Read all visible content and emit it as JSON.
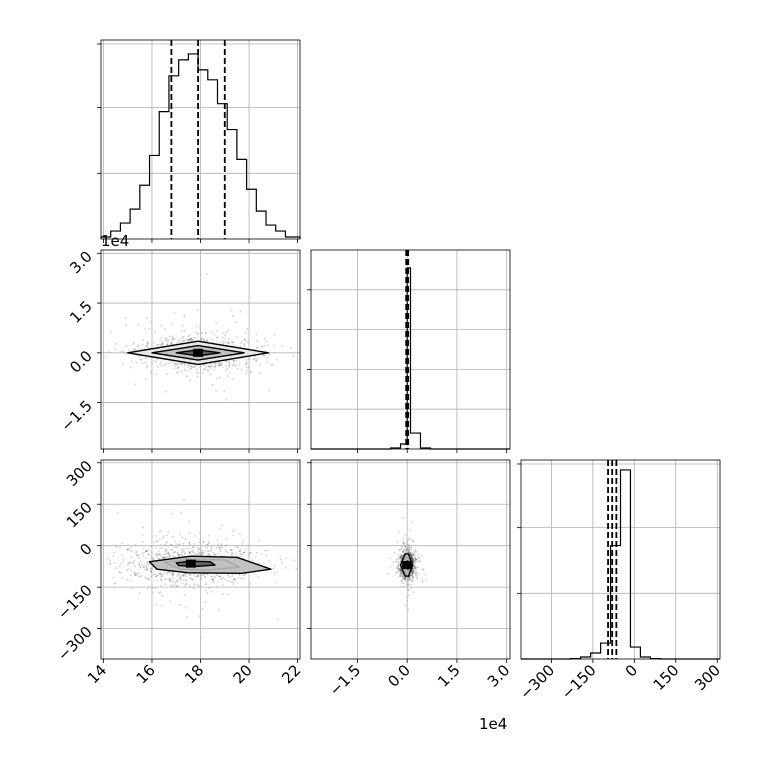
{
  "chart_data": {
    "type": "corner",
    "parameters": [
      {
        "range": [
          13.9,
          22.1
        ],
        "ticks": [
          14,
          16,
          18,
          20,
          22
        ],
        "tick_labels": [
          "14",
          "16",
          "18",
          "20",
          "22"
        ],
        "quantiles": [
          16.8,
          17.9,
          19.0
        ],
        "hist_y_ticks": [
          33,
          66,
          98
        ],
        "hist_max": 100,
        "hist_bin_edges": [
          13.9,
          14.3,
          14.7,
          15.1,
          15.5,
          15.9,
          16.3,
          16.7,
          17.1,
          17.5,
          17.9,
          18.3,
          18.7,
          19.1,
          19.5,
          19.9,
          20.3,
          20.7,
          21.1,
          21.5,
          22.1
        ],
        "hist_counts": [
          1,
          4,
          8,
          15,
          27,
          42,
          64,
          82,
          90,
          93,
          85,
          80,
          68,
          55,
          40,
          25,
          14,
          7,
          4,
          1
        ]
      },
      {
        "range": [
          -29000,
          31000
        ],
        "ticks": [
          -15000,
          0,
          15000,
          30000
        ],
        "tick_labels": [
          "−1.5",
          "0.0",
          "1.5",
          "3.0"
        ],
        "quantiles": [
          -300,
          0,
          300
        ],
        "offset_label": "1e4",
        "hist_y_ticks": [
          20,
          40,
          60,
          80
        ],
        "hist_max": 100,
        "hist_bin_edges": [
          -29000,
          -26000,
          -23000,
          -20000,
          -17000,
          -14000,
          -11000,
          -8000,
          -5000,
          -2000,
          0,
          1000,
          4000,
          7000,
          10000,
          13000,
          16000,
          19000,
          22000,
          25000,
          28000,
          31000
        ],
        "hist_counts": [
          0,
          0,
          0,
          0,
          0,
          0,
          0,
          0,
          0.5,
          2.5,
          91,
          8,
          0.5,
          0,
          0,
          0,
          0,
          0,
          0,
          0,
          0
        ]
      },
      {
        "range": [
          -410,
          310
        ],
        "ticks": [
          -300,
          -150,
          0,
          150,
          300
        ],
        "tick_labels": [
          "−300",
          "−150",
          "0",
          "150",
          "300"
        ],
        "quantiles": [
          -95,
          -80,
          -65
        ],
        "hist_y_ticks": [
          33,
          66,
          98
        ],
        "hist_max": 100,
        "hist_bin_edges": [
          -410,
          -374,
          -338,
          -302,
          -266,
          -230,
          -194,
          -158,
          -122,
          -86,
          -50,
          -14,
          22,
          58,
          94,
          130,
          166,
          202,
          238,
          274,
          310
        ],
        "hist_counts": [
          0,
          0,
          0,
          0,
          0,
          0.2,
          1,
          3,
          8,
          57,
          95,
          6,
          1,
          0.2,
          0,
          0,
          0,
          0,
          0,
          0
        ]
      }
    ],
    "pairs": [
      {
        "x": 0,
        "y": 1,
        "center": [
          17.9,
          0
        ],
        "spread": [
          1.2,
          2500
        ],
        "contours": [
          [
            [
              16.0,
              0
            ],
            [
              17.9,
              2200
            ],
            [
              19.8,
              0
            ],
            [
              17.9,
              -2200
            ]
          ],
          [
            [
              15.0,
              0
            ],
            [
              17.9,
              3500
            ],
            [
              20.8,
              0
            ],
            [
              17.9,
              -3500
            ]
          ],
          [
            [
              17.0,
              0
            ],
            [
              17.9,
              900
            ],
            [
              18.8,
              0
            ],
            [
              17.9,
              -900
            ]
          ]
        ]
      },
      {
        "x": 0,
        "y": 2,
        "center": [
          17.6,
          -65
        ],
        "spread": [
          1.3,
          40
        ],
        "contours": [
          [
            [
              15.9,
              -58
            ],
            [
              17.6,
              -38
            ],
            [
              19.5,
              -42
            ],
            [
              20.9,
              -85
            ],
            [
              19.7,
              -100
            ],
            [
              17.5,
              -98
            ],
            [
              16.2,
              -85
            ]
          ],
          [
            [
              16.5,
              -60
            ],
            [
              17.6,
              -48
            ],
            [
              19.0,
              -52
            ],
            [
              19.6,
              -78
            ],
            [
              18.3,
              -88
            ],
            [
              17.2,
              -85
            ]
          ],
          [
            [
              17.0,
              -62
            ],
            [
              17.6,
              -56
            ],
            [
              18.4,
              -58
            ],
            [
              18.6,
              -70
            ],
            [
              17.8,
              -75
            ],
            [
              17.1,
              -72
            ]
          ]
        ]
      },
      {
        "x": 1,
        "y": 2,
        "center": [
          0,
          -70
        ],
        "spread": [
          1100,
          25
        ],
        "contours": [
          [
            [
              -2000,
              -70
            ],
            [
              -600,
              -30
            ],
            [
              400,
              -30
            ],
            [
              1600,
              -70
            ],
            [
              400,
              -110
            ],
            [
              -600,
              -110
            ]
          ],
          [
            [
              -1000,
              -70
            ],
            [
              -300,
              -45
            ],
            [
              300,
              -45
            ],
            [
              800,
              -70
            ],
            [
              300,
              -95
            ],
            [
              -300,
              -95
            ]
          ],
          [
            [
              -400,
              -60
            ],
            [
              200,
              -55
            ],
            [
              600,
              -70
            ],
            [
              200,
              -85
            ],
            [
              -400,
              -80
            ]
          ]
        ]
      }
    ]
  }
}
